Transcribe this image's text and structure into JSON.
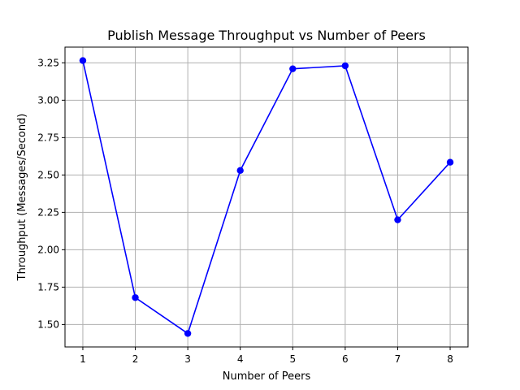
{
  "chart_data": {
    "type": "line",
    "title": "Publish Message Throughput vs Number of Peers",
    "xlabel": "Number of Peers",
    "ylabel": "Throughput (Messages/Second)",
    "x": [
      1,
      2,
      3,
      4,
      5,
      6,
      7,
      8
    ],
    "series": [
      {
        "values": [
          3.265,
          1.68,
          1.44,
          2.53,
          3.21,
          3.23,
          2.2,
          2.585
        ],
        "color": "#0000ff",
        "marker": "circle"
      }
    ],
    "xlim": [
      0.66,
      8.34
    ],
    "ylim": [
      1.35,
      3.355
    ],
    "xticks": [
      "1",
      "2",
      "3",
      "4",
      "5",
      "6",
      "7",
      "8"
    ],
    "yticks": [
      "1.50",
      "1.75",
      "2.00",
      "2.25",
      "2.50",
      "2.75",
      "3.00",
      "3.25"
    ],
    "grid": true
  }
}
